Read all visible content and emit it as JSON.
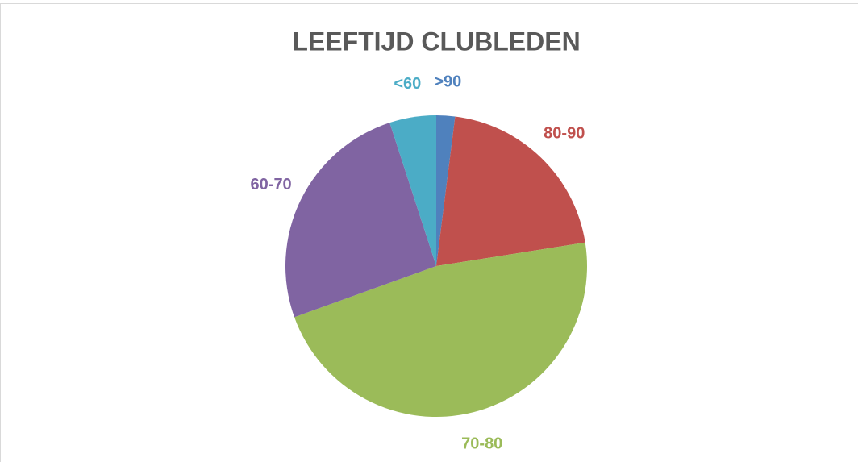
{
  "chart_data": {
    "type": "pie",
    "title": "LEEFTIJD CLUBLEDEN",
    "categories": [
      ">90",
      "80-90",
      "70-80",
      "60-70",
      "<60"
    ],
    "values": [
      2,
      20.5,
      47,
      25.5,
      5
    ],
    "colors": [
      "#4f81bd",
      "#c0504d",
      "#9bbb59",
      "#8064a2",
      "#4bacc6"
    ]
  }
}
